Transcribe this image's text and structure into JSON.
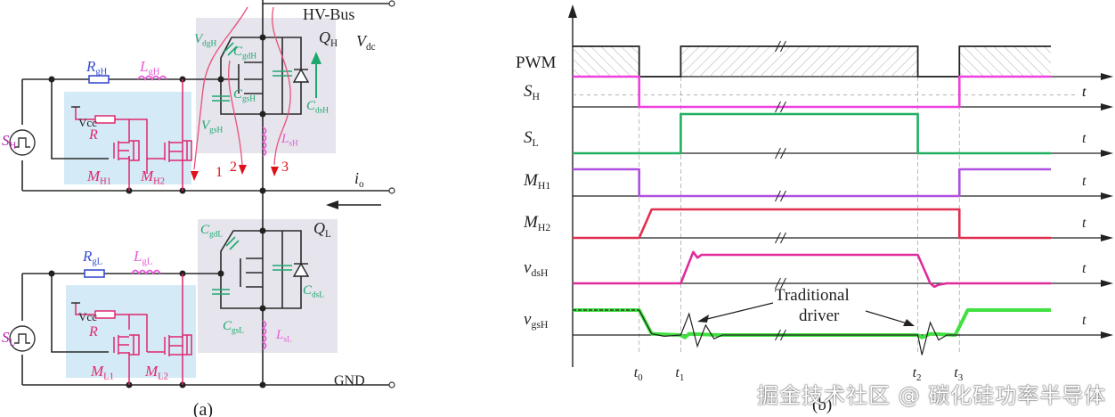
{
  "colors": {
    "wire": "#2a2a2a",
    "rg_blue": "#3a4fd0",
    "lg_pink": "#e85ad8",
    "driver_red": "#e0286e",
    "parasitic_green": "#1fa86e",
    "current_path": "#e8507a",
    "arrow_red": "#e0101a",
    "driver_box": "#d4eaf6",
    "mosfet_box": "#e6e4ec",
    "SH": "#f040e0",
    "SL": "#20b060",
    "MH1": "#b050e0",
    "MH2": "#e03050",
    "vdsH": "#e02c9c",
    "vgsH": "#40e040"
  },
  "circuit": {
    "caption": "(a)",
    "hv_bus": "HV-Bus",
    "gnd": "GND",
    "vdc": {
      "main": "V",
      "sub": "dc"
    },
    "io": {
      "main": "i",
      "sub": "o"
    },
    "high_side": {
      "source": {
        "main": "S",
        "sub": "H"
      },
      "rg": {
        "main": "R",
        "sub": "gH"
      },
      "lg": {
        "main": "L",
        "sub": "gH"
      },
      "vcc": "Vcc",
      "r": "R",
      "m1": {
        "main": "M",
        "sub": "H1"
      },
      "m2": {
        "main": "M",
        "sub": "H2"
      },
      "q": {
        "main": "Q",
        "sub": "H"
      },
      "cgd": {
        "main": "C",
        "sub": "gdH"
      },
      "cgs": {
        "main": "C",
        "sub": "gsH"
      },
      "cds": {
        "main": "C",
        "sub": "dsH"
      },
      "vdg": {
        "main": "V",
        "sub": "dgH"
      },
      "vgs": {
        "main": "V",
        "sub": "gsH"
      },
      "ls": {
        "main": "L",
        "sub": "sH"
      },
      "paths": [
        "1",
        "2",
        "3"
      ]
    },
    "low_side": {
      "source": {
        "main": "S",
        "sub": "L"
      },
      "rg": {
        "main": "R",
        "sub": "gL"
      },
      "lg": {
        "main": "L",
        "sub": "gL"
      },
      "vcc": "Vcc",
      "r": "R",
      "m1": {
        "main": "M",
        "sub": "L1"
      },
      "m2": {
        "main": "M",
        "sub": "L2"
      },
      "q": {
        "main": "Q",
        "sub": "L"
      },
      "cgd": {
        "main": "C",
        "sub": "gdL"
      },
      "cgs": {
        "main": "C",
        "sub": "gsL"
      },
      "cds": {
        "main": "C",
        "sub": "dsL"
      },
      "ls": {
        "main": "L",
        "sub": "sL"
      }
    }
  },
  "chart_data": {
    "type": "line",
    "title": "(b)",
    "xlabel": "t",
    "time_markers": [
      "t0",
      "t1",
      "t2",
      "t3"
    ],
    "time_marker_values": [
      0.16,
      0.26,
      0.83,
      0.93
    ],
    "x_range": [
      0,
      1.15
    ],
    "annotation": "Traditional driver",
    "traces": [
      {
        "name": "PWM",
        "label": {
          "main": "PWM",
          "sub": ""
        },
        "kind": "hatched-pulse",
        "points": [
          [
            0,
            1
          ],
          [
            0.16,
            1
          ],
          [
            0.16,
            0
          ],
          [
            0.26,
            0
          ],
          [
            0.26,
            1
          ],
          [
            0.83,
            1
          ],
          [
            0.83,
            0
          ],
          [
            0.93,
            0
          ],
          [
            0.93,
            1
          ],
          [
            1.15,
            1
          ]
        ]
      },
      {
        "name": "SH",
        "label": {
          "main": "S",
          "sub": "H"
        },
        "color_key": "SH",
        "points": [
          [
            0,
            1
          ],
          [
            0.16,
            1
          ],
          [
            0.16,
            0
          ],
          [
            0.93,
            0
          ],
          [
            0.93,
            1
          ],
          [
            1.15,
            1
          ]
        ],
        "dashed_level": 0.4
      },
      {
        "name": "SL",
        "label": {
          "main": "S",
          "sub": "L"
        },
        "color_key": "SL",
        "points": [
          [
            0,
            0
          ],
          [
            0.26,
            0
          ],
          [
            0.26,
            1
          ],
          [
            0.83,
            1
          ],
          [
            0.83,
            0
          ],
          [
            1.15,
            0
          ]
        ]
      },
      {
        "name": "MH1",
        "label": {
          "main": "M",
          "sub": "H1"
        },
        "color_key": "MH1",
        "points": [
          [
            0,
            1
          ],
          [
            0.16,
            1
          ],
          [
            0.16,
            0
          ],
          [
            0.93,
            0
          ],
          [
            0.93,
            1
          ],
          [
            1.15,
            1
          ]
        ]
      },
      {
        "name": "MH2",
        "label": {
          "main": "M",
          "sub": "H2"
        },
        "color_key": "MH2",
        "points": [
          [
            0,
            0
          ],
          [
            0.16,
            0
          ],
          [
            0.19,
            1
          ],
          [
            0.93,
            1
          ],
          [
            0.93,
            0
          ],
          [
            1.15,
            0
          ]
        ]
      },
      {
        "name": "vdsH",
        "label": {
          "main": "v",
          "sub": "dsH"
        },
        "color_key": "vdsH",
        "points": [
          [
            0,
            0
          ],
          [
            0.26,
            0
          ],
          [
            0.29,
            1.1
          ],
          [
            0.3,
            0.9
          ],
          [
            0.31,
            1
          ],
          [
            0.83,
            1
          ],
          [
            0.86,
            0
          ],
          [
            0.87,
            -0.12
          ],
          [
            0.88,
            -0.05
          ],
          [
            0.9,
            0
          ],
          [
            1.15,
            0
          ]
        ]
      },
      {
        "name": "vgsH",
        "label": {
          "main": "v",
          "sub": "gsH"
        },
        "color_key": "vgsH",
        "points": [
          [
            0,
            1
          ],
          [
            0.16,
            1
          ],
          [
            0.19,
            0.05
          ],
          [
            0.26,
            0
          ],
          [
            0.27,
            -0.1
          ],
          [
            0.28,
            0.05
          ],
          [
            0.35,
            0
          ],
          [
            0.83,
            0
          ],
          [
            0.84,
            -0.1
          ],
          [
            0.86,
            0.05
          ],
          [
            0.92,
            0
          ],
          [
            0.95,
            1
          ],
          [
            1.15,
            1
          ]
        ],
        "traditional": [
          [
            0.16,
            1
          ],
          [
            0.19,
            0.05
          ],
          [
            0.22,
            -0.05
          ],
          [
            0.26,
            0
          ],
          [
            0.28,
            0.85
          ],
          [
            0.3,
            -0.45
          ],
          [
            0.32,
            0.4
          ],
          [
            0.34,
            -0.15
          ],
          [
            0.36,
            0
          ],
          [
            0.83,
            0
          ],
          [
            0.84,
            -0.8
          ],
          [
            0.86,
            0.5
          ],
          [
            0.88,
            -0.2
          ],
          [
            0.9,
            0
          ],
          [
            0.93,
            0
          ]
        ]
      }
    ]
  },
  "watermark": "掘金技术社区 @ 碳化硅功率半导体"
}
